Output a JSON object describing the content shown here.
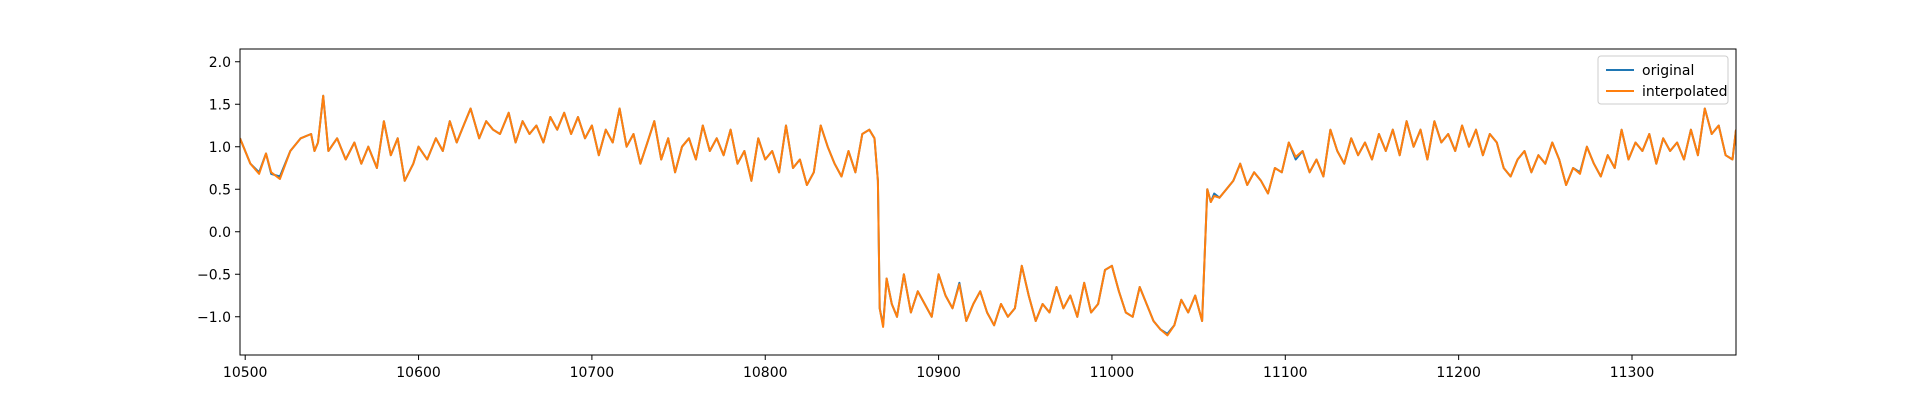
{
  "chart_data": {
    "type": "line",
    "title": "",
    "xlabel": "",
    "ylabel": "",
    "xlim": [
      10497,
      11360
    ],
    "ylim": [
      -1.45,
      2.15
    ],
    "xticks": [
      10500,
      10600,
      10700,
      10800,
      10900,
      11000,
      11100,
      11200,
      11300
    ],
    "yticks": [
      -1.0,
      -0.5,
      0.0,
      0.5,
      1.0,
      1.5,
      2.0
    ],
    "ytick_labels": [
      "−1.0",
      "−0.5",
      "0.0",
      "0.5",
      "1.0",
      "1.5",
      "2.0"
    ],
    "grid": false,
    "legend": "top-right",
    "series": [
      {
        "name": "original",
        "color": "#1f77b4",
        "x": [
          10497,
          10503,
          10508,
          10512,
          10515,
          10520,
          10526,
          10532,
          10538,
          10540,
          10542,
          10545,
          10548,
          10553,
          10558,
          10563,
          10567,
          10571,
          10576,
          10580,
          10584,
          10588,
          10592,
          10597,
          10600,
          10605,
          10610,
          10614,
          10618,
          10622,
          10626,
          10630,
          10635,
          10639,
          10643,
          10647,
          10652,
          10656,
          10660,
          10664,
          10668,
          10672,
          10676,
          10680,
          10684,
          10688,
          10692,
          10696,
          10700,
          10704,
          10708,
          10712,
          10716,
          10720,
          10724,
          10728,
          10732,
          10736,
          10740,
          10744,
          10748,
          10752,
          10756,
          10760,
          10764,
          10768,
          10772,
          10776,
          10780,
          10784,
          10788,
          10792,
          10796,
          10800,
          10804,
          10808,
          10812,
          10816,
          10820,
          10824,
          10828,
          10832,
          10836,
          10840,
          10844,
          10848,
          10852,
          10856,
          10860,
          10863,
          10865,
          10866,
          10868,
          10870,
          10873,
          10876,
          10880,
          10884,
          10888,
          10892,
          10896,
          10900,
          10904,
          10908,
          10912,
          10916,
          10920,
          10924,
          10928,
          10932,
          10936,
          10940,
          10944,
          10948,
          10952,
          10956,
          10960,
          10964,
          10968,
          10972,
          10976,
          10980,
          10984,
          10988,
          10992,
          10996,
          11000,
          11004,
          11008,
          11012,
          11016,
          11020,
          11024,
          11028,
          11032,
          11036,
          11040,
          11044,
          11048,
          11052,
          11055,
          11057,
          11059,
          11062,
          11066,
          11070,
          11074,
          11078,
          11082,
          11086,
          11090,
          11094,
          11098,
          11102,
          11106,
          11110,
          11114,
          11118,
          11122,
          11126,
          11130,
          11134,
          11138,
          11142,
          11146,
          11150,
          11154,
          11158,
          11162,
          11166,
          11170,
          11174,
          11178,
          11182,
          11186,
          11190,
          11194,
          11198,
          11202,
          11206,
          11210,
          11214,
          11218,
          11222,
          11226,
          11230,
          11234,
          11238,
          11242,
          11246,
          11250,
          11254,
          11258,
          11262,
          11266,
          11270,
          11274,
          11278,
          11282,
          11286,
          11290,
          11294,
          11298,
          11302,
          11306,
          11310,
          11314,
          11318,
          11322,
          11326,
          11330,
          11334,
          11338,
          11342,
          11346,
          11350,
          11354,
          11358,
          11360
        ],
        "y": [
          1.1,
          0.8,
          0.7,
          0.92,
          0.68,
          0.65,
          0.95,
          1.1,
          1.15,
          0.95,
          1.05,
          1.6,
          0.95,
          1.1,
          0.85,
          1.05,
          0.8,
          1.0,
          0.75,
          1.3,
          0.9,
          1.1,
          0.6,
          0.8,
          1.0,
          0.85,
          1.1,
          0.95,
          1.3,
          1.05,
          1.25,
          1.45,
          1.1,
          1.3,
          1.2,
          1.15,
          1.4,
          1.05,
          1.3,
          1.15,
          1.25,
          1.05,
          1.35,
          1.2,
          1.4,
          1.15,
          1.35,
          1.1,
          1.25,
          0.9,
          1.2,
          1.05,
          1.45,
          1.0,
          1.15,
          0.8,
          1.05,
          1.3,
          0.85,
          1.1,
          0.7,
          1.0,
          1.1,
          0.85,
          1.25,
          0.95,
          1.1,
          0.9,
          1.2,
          0.8,
          0.95,
          0.6,
          1.1,
          0.85,
          0.95,
          0.7,
          1.25,
          0.75,
          0.85,
          0.55,
          0.7,
          1.25,
          1.0,
          0.8,
          0.65,
          0.95,
          0.7,
          1.15,
          1.2,
          1.1,
          0.6,
          -0.9,
          -1.1,
          -0.55,
          -0.85,
          -1.0,
          -0.5,
          -0.95,
          -0.7,
          -0.85,
          -1.0,
          -0.5,
          -0.75,
          -0.9,
          -0.6,
          -1.05,
          -0.85,
          -0.7,
          -0.95,
          -1.1,
          -0.85,
          -1.0,
          -0.9,
          -0.4,
          -0.75,
          -1.05,
          -0.85,
          -0.95,
          -0.65,
          -0.9,
          -0.75,
          -1.0,
          -0.6,
          -0.95,
          -0.85,
          -0.45,
          -0.4,
          -0.7,
          -0.95,
          -1.0,
          -0.65,
          -0.85,
          -1.05,
          -1.15,
          -1.2,
          -1.1,
          -0.8,
          -0.95,
          -0.75,
          -1.05,
          0.5,
          0.35,
          0.45,
          0.4,
          0.5,
          0.6,
          0.8,
          0.55,
          0.7,
          0.6,
          0.45,
          0.75,
          0.7,
          1.05,
          0.85,
          0.95,
          0.7,
          0.85,
          0.65,
          1.2,
          0.95,
          0.8,
          1.1,
          0.9,
          1.05,
          0.85,
          1.15,
          0.95,
          1.2,
          0.9,
          1.3,
          1.0,
          1.2,
          0.85,
          1.3,
          1.05,
          1.15,
          0.95,
          1.25,
          1.0,
          1.2,
          0.9,
          1.15,
          1.05,
          0.75,
          0.65,
          0.85,
          0.95,
          0.7,
          0.9,
          0.8,
          1.05,
          0.85,
          0.55,
          0.75,
          0.7,
          1.0,
          0.8,
          0.65,
          0.9,
          0.75,
          1.2,
          0.85,
          1.05,
          0.95,
          1.15,
          0.8,
          1.1,
          0.95,
          1.05,
          0.85,
          1.2,
          0.9,
          1.45,
          1.15,
          1.25,
          0.9,
          0.85,
          1.2
        ]
      },
      {
        "name": "interpolated",
        "color": "#ff7f0e",
        "x": [
          10497,
          10503,
          10508,
          10512,
          10515,
          10520,
          10526,
          10532,
          10538,
          10540,
          10542,
          10545,
          10548,
          10553,
          10558,
          10563,
          10567,
          10571,
          10576,
          10580,
          10584,
          10588,
          10592,
          10597,
          10600,
          10605,
          10610,
          10614,
          10618,
          10622,
          10626,
          10630,
          10635,
          10639,
          10643,
          10647,
          10652,
          10656,
          10660,
          10664,
          10668,
          10672,
          10676,
          10680,
          10684,
          10688,
          10692,
          10696,
          10700,
          10704,
          10708,
          10712,
          10716,
          10720,
          10724,
          10728,
          10732,
          10736,
          10740,
          10744,
          10748,
          10752,
          10756,
          10760,
          10764,
          10768,
          10772,
          10776,
          10780,
          10784,
          10788,
          10792,
          10796,
          10800,
          10804,
          10808,
          10812,
          10816,
          10820,
          10824,
          10828,
          10832,
          10836,
          10840,
          10844,
          10848,
          10852,
          10856,
          10860,
          10863,
          10865,
          10866,
          10868,
          10870,
          10873,
          10876,
          10880,
          10884,
          10888,
          10892,
          10896,
          10900,
          10904,
          10908,
          10912,
          10916,
          10920,
          10924,
          10928,
          10932,
          10936,
          10940,
          10944,
          10948,
          10952,
          10956,
          10960,
          10964,
          10968,
          10972,
          10976,
          10980,
          10984,
          10988,
          10992,
          10996,
          11000,
          11004,
          11008,
          11012,
          11016,
          11020,
          11024,
          11028,
          11032,
          11036,
          11040,
          11044,
          11048,
          11052,
          11055,
          11057,
          11059,
          11062,
          11066,
          11070,
          11074,
          11078,
          11082,
          11086,
          11090,
          11094,
          11098,
          11102,
          11106,
          11110,
          11114,
          11118,
          11122,
          11126,
          11130,
          11134,
          11138,
          11142,
          11146,
          11150,
          11154,
          11158,
          11162,
          11166,
          11170,
          11174,
          11178,
          11182,
          11186,
          11190,
          11194,
          11198,
          11202,
          11206,
          11210,
          11214,
          11218,
          11222,
          11226,
          11230,
          11234,
          11238,
          11242,
          11246,
          11250,
          11254,
          11258,
          11262,
          11266,
          11270,
          11274,
          11278,
          11282,
          11286,
          11290,
          11294,
          11298,
          11302,
          11306,
          11310,
          11314,
          11318,
          11322,
          11326,
          11330,
          11334,
          11338,
          11342,
          11346,
          11350,
          11354,
          11358,
          11360
        ],
        "y": [
          1.1,
          0.8,
          0.68,
          0.92,
          0.7,
          0.62,
          0.95,
          1.1,
          1.15,
          0.95,
          1.05,
          1.6,
          0.95,
          1.1,
          0.85,
          1.05,
          0.8,
          1.0,
          0.75,
          1.3,
          0.9,
          1.1,
          0.6,
          0.8,
          1.0,
          0.85,
          1.1,
          0.95,
          1.3,
          1.05,
          1.25,
          1.45,
          1.1,
          1.3,
          1.2,
          1.15,
          1.4,
          1.05,
          1.3,
          1.15,
          1.25,
          1.05,
          1.35,
          1.2,
          1.4,
          1.15,
          1.35,
          1.1,
          1.25,
          0.9,
          1.2,
          1.05,
          1.45,
          1.0,
          1.15,
          0.8,
          1.05,
          1.3,
          0.85,
          1.1,
          0.7,
          1.0,
          1.1,
          0.85,
          1.25,
          0.95,
          1.1,
          0.9,
          1.2,
          0.8,
          0.95,
          0.6,
          1.1,
          0.85,
          0.95,
          0.7,
          1.25,
          0.75,
          0.85,
          0.55,
          0.7,
          1.25,
          1.0,
          0.8,
          0.65,
          0.95,
          0.7,
          1.15,
          1.2,
          1.1,
          0.6,
          -0.9,
          -1.12,
          -0.55,
          -0.85,
          -1.0,
          -0.5,
          -0.95,
          -0.7,
          -0.85,
          -1.0,
          -0.5,
          -0.75,
          -0.9,
          -0.62,
          -1.05,
          -0.85,
          -0.7,
          -0.95,
          -1.1,
          -0.85,
          -1.0,
          -0.9,
          -0.4,
          -0.75,
          -1.05,
          -0.85,
          -0.95,
          -0.65,
          -0.9,
          -0.75,
          -1.0,
          -0.6,
          -0.95,
          -0.85,
          -0.45,
          -0.4,
          -0.7,
          -0.95,
          -1.0,
          -0.65,
          -0.85,
          -1.05,
          -1.15,
          -1.22,
          -1.1,
          -0.8,
          -0.95,
          -0.75,
          -1.05,
          0.5,
          0.35,
          0.42,
          0.4,
          0.5,
          0.6,
          0.8,
          0.55,
          0.7,
          0.6,
          0.45,
          0.75,
          0.7,
          1.05,
          0.88,
          0.95,
          0.7,
          0.85,
          0.65,
          1.2,
          0.95,
          0.8,
          1.1,
          0.9,
          1.05,
          0.85,
          1.15,
          0.95,
          1.2,
          0.9,
          1.3,
          1.0,
          1.2,
          0.85,
          1.3,
          1.05,
          1.15,
          0.95,
          1.25,
          1.0,
          1.2,
          0.9,
          1.15,
          1.05,
          0.75,
          0.65,
          0.85,
          0.95,
          0.7,
          0.9,
          0.8,
          1.05,
          0.85,
          0.55,
          0.75,
          0.68,
          1.0,
          0.8,
          0.65,
          0.9,
          0.75,
          1.2,
          0.85,
          1.05,
          0.95,
          1.15,
          0.8,
          1.1,
          0.95,
          1.05,
          0.85,
          1.2,
          0.9,
          1.45,
          1.15,
          1.25,
          0.9,
          0.85,
          1.2
        ]
      }
    ]
  }
}
